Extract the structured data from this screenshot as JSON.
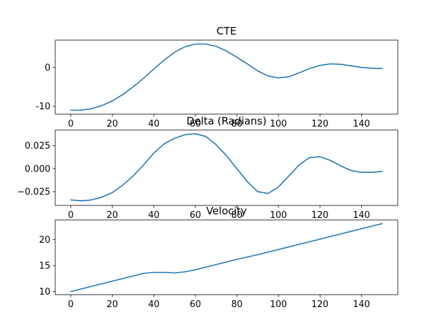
{
  "chart_data": [
    {
      "type": "line",
      "title": "CTE",
      "xlabel": "",
      "ylabel": "",
      "xlim": [
        -7.5,
        157.5
      ],
      "ylim": [
        -12,
        7
      ],
      "xticks": [
        0,
        20,
        40,
        60,
        80,
        100,
        120,
        140
      ],
      "yticks": [
        -10,
        0
      ],
      "color": "#1f77b4",
      "grid": false,
      "series": [
        {
          "x": [
            0,
            5,
            10,
            15,
            20,
            25,
            30,
            35,
            40,
            45,
            50,
            55,
            60,
            65,
            70,
            75,
            80,
            85,
            90,
            95,
            100,
            105,
            110,
            115,
            120,
            125,
            130,
            135,
            140,
            145,
            150
          ],
          "y": [
            -11,
            -11,
            -10.6,
            -9.8,
            -8.6,
            -7,
            -5,
            -2.8,
            -0.4,
            1.9,
            3.9,
            5.3,
            6,
            6,
            5.4,
            4.2,
            2.6,
            0.9,
            -0.9,
            -2.2,
            -2.7,
            -2.4,
            -1.4,
            -0.3,
            0.5,
            0.9,
            0.8,
            0.4,
            0,
            -0.2,
            -0.3
          ]
        }
      ]
    },
    {
      "type": "line",
      "title": "Delta (Radians)",
      "xlabel": "",
      "ylabel": "",
      "xlim": [
        -7.5,
        157.5
      ],
      "ylim": [
        -0.04,
        0.042
      ],
      "xticks": [
        0,
        20,
        40,
        60,
        80,
        100,
        120,
        140
      ],
      "yticks": [
        -0.025,
        0.0,
        0.025
      ],
      "ytick_labels": [
        "−0.025",
        "0.000",
        "0.025"
      ],
      "color": "#1f77b4",
      "grid": false,
      "series": [
        {
          "x": [
            0,
            5,
            10,
            15,
            20,
            25,
            30,
            35,
            40,
            45,
            50,
            55,
            60,
            65,
            70,
            75,
            80,
            85,
            90,
            95,
            100,
            105,
            110,
            115,
            120,
            125,
            130,
            135,
            140,
            145,
            150
          ],
          "y": [
            -0.034,
            -0.035,
            -0.034,
            -0.031,
            -0.026,
            -0.018,
            -0.008,
            0.004,
            0.017,
            0.027,
            0.033,
            0.037,
            0.038,
            0.035,
            0.026,
            0.014,
            0,
            -0.014,
            -0.025,
            -0.027,
            -0.02,
            -0.008,
            0.004,
            0.012,
            0.013,
            0.009,
            0.003,
            -0.002,
            -0.004,
            -0.004,
            -0.003
          ]
        }
      ]
    },
    {
      "type": "line",
      "title": "Velocity",
      "xlabel": "",
      "ylabel": "",
      "xlim": [
        -7.5,
        157.5
      ],
      "ylim": [
        9.4,
        23.8
      ],
      "xticks": [
        0,
        20,
        40,
        60,
        80,
        100,
        120,
        140
      ],
      "yticks": [
        10,
        15,
        20
      ],
      "color": "#1f77b4",
      "grid": false,
      "series": [
        {
          "x": [
            0,
            10,
            20,
            30,
            35,
            40,
            45,
            50,
            55,
            60,
            70,
            80,
            90,
            100,
            110,
            120,
            130,
            140,
            150
          ],
          "y": [
            10,
            11,
            12,
            13,
            13.5,
            13.7,
            13.7,
            13.6,
            13.8,
            14.2,
            15.2,
            16.2,
            17.1,
            18.1,
            19.1,
            20.1,
            21.1,
            22.1,
            23.1
          ]
        }
      ]
    }
  ]
}
